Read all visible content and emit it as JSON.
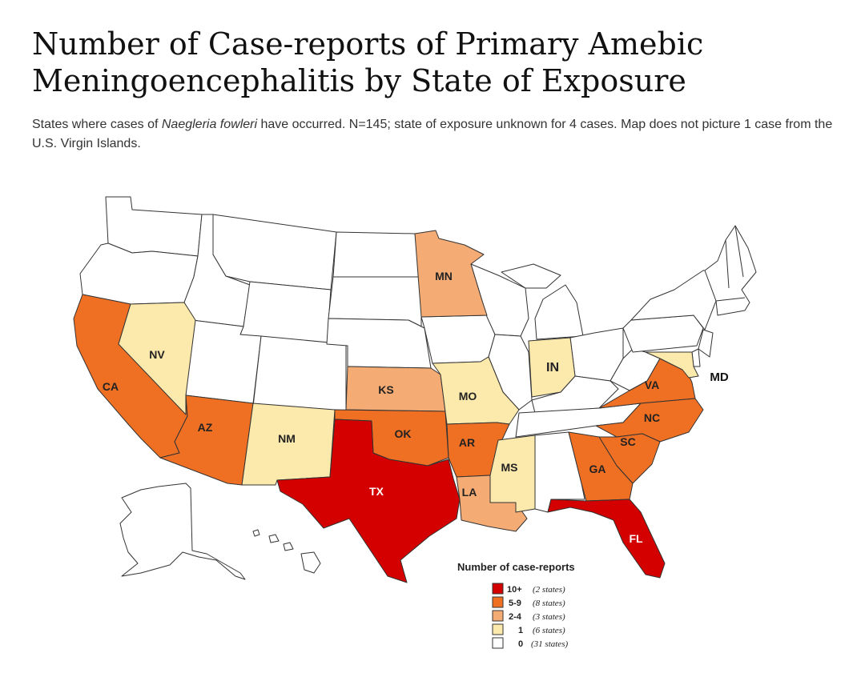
{
  "title": "Number of Case-reports of Primary Amebic Meningoencephalitis by State of Exposure",
  "subtitle": {
    "part1": "States where cases of ",
    "organism": "Naegleria fowleri",
    "part2": " have occurred. N=145; state of exposure unknown for 4 cases. Map does not picture 1 case from the U.S. Virgin Islands."
  },
  "colors": {
    "c10plus": "#d40000",
    "c5to9": "#f07023",
    "c2to4": "#f4ab74",
    "c1": "#fce9ac",
    "c0": "#ffffff"
  },
  "states": {
    "CA": {
      "label": "CA",
      "category": "5-9"
    },
    "NV": {
      "label": "NV",
      "category": "1"
    },
    "AZ": {
      "label": "AZ",
      "category": "5-9"
    },
    "NM": {
      "label": "NM",
      "category": "1"
    },
    "TX": {
      "label": "TX",
      "category": "10+"
    },
    "OK": {
      "label": "OK",
      "category": "5-9"
    },
    "KS": {
      "label": "KS",
      "category": "2-4"
    },
    "MN": {
      "label": "MN",
      "category": "2-4"
    },
    "MO": {
      "label": "MO",
      "category": "1"
    },
    "AR": {
      "label": "AR",
      "category": "5-9"
    },
    "LA": {
      "label": "LA",
      "category": "2-4"
    },
    "MS": {
      "label": "MS",
      "category": "1"
    },
    "IN": {
      "label": "IN",
      "category": "1"
    },
    "VA": {
      "label": "VA",
      "category": "5-9"
    },
    "NC": {
      "label": "NC",
      "category": "5-9"
    },
    "SC": {
      "label": "SC",
      "category": "5-9"
    },
    "GA": {
      "label": "GA",
      "category": "5-9"
    },
    "FL": {
      "label": "FL",
      "category": "10+"
    },
    "MD": {
      "label": "MD",
      "category": "1"
    }
  },
  "legend": {
    "title": "Number of case-reports",
    "items": [
      {
        "range": "10+",
        "count": "(2 states)",
        "color": "#d40000"
      },
      {
        "range": "5-9",
        "count": "(8 states)",
        "color": "#f07023"
      },
      {
        "range": "2-4",
        "count": "(3 states)",
        "color": "#f4ab74"
      },
      {
        "range": "1",
        "count": "(6 states)",
        "color": "#fce9ac"
      },
      {
        "range": "0",
        "count": "(31 states)",
        "color": "#ffffff"
      }
    ]
  }
}
